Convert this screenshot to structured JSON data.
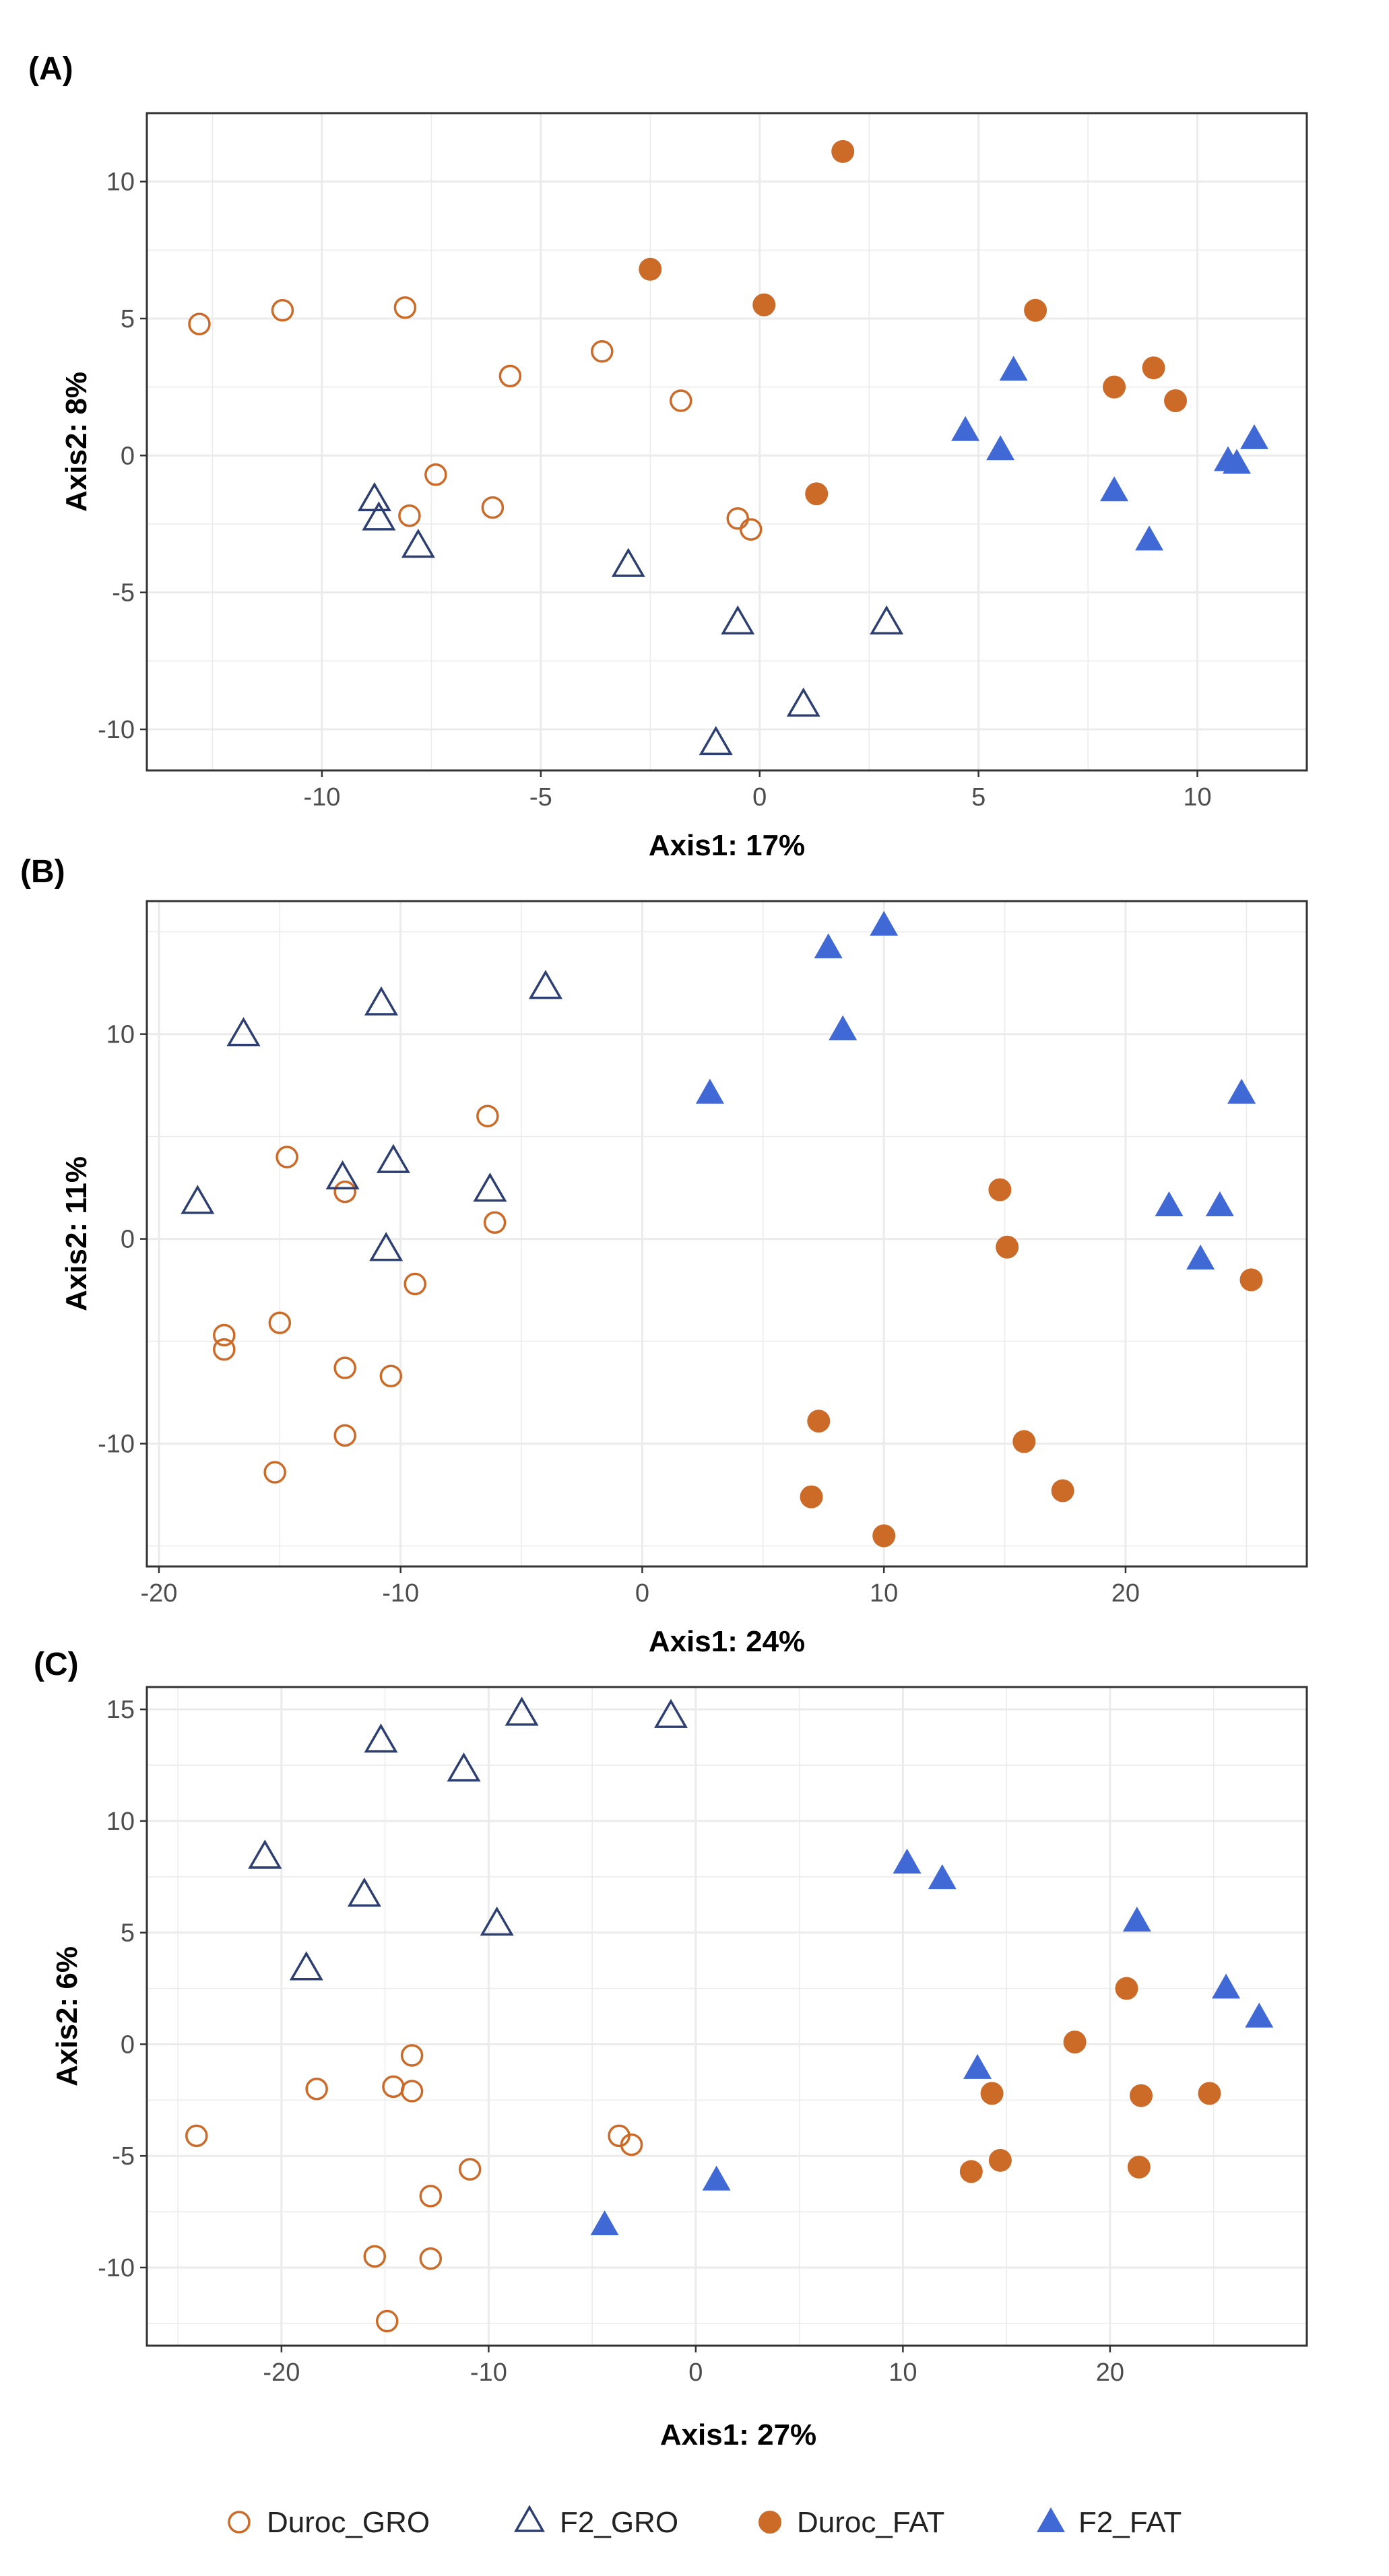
{
  "colors": {
    "duroc": "#cc6a28",
    "f2": "#4169d6",
    "f2_open": "#2c3f70",
    "grid": "#ebebeb",
    "panel_border": "#333333",
    "tick_text": "#4d4d4d",
    "axis_text": "#000000"
  },
  "legend": {
    "entries": [
      {
        "label": "Duroc_GRO",
        "shape": "circle",
        "filled": false,
        "color": "#cc6a28"
      },
      {
        "label": "F2_GRO",
        "shape": "triangle",
        "filled": false,
        "color": "#2c3f70"
      },
      {
        "label": "Duroc_FAT",
        "shape": "circle",
        "filled": true,
        "color": "#cc6a28"
      },
      {
        "label": "F2_FAT",
        "shape": "triangle",
        "filled": true,
        "color": "#4169d6"
      }
    ]
  },
  "chart_data": [
    {
      "panel_label": "(A)",
      "type": "scatter",
      "xlabel": "Axis1: 17%",
      "ylabel": "Axis2: 8%",
      "xlim": [
        -14,
        12.5
      ],
      "ylim": [
        -11.5,
        12.5
      ],
      "xticks": [
        -10,
        -5,
        0,
        5,
        10
      ],
      "yticks": [
        -10,
        -5,
        0,
        5,
        10
      ],
      "xtick_labels": [
        "-10",
        "-5",
        "0",
        "5",
        "10"
      ],
      "ytick_labels": [
        "-10",
        "-5",
        "0",
        "5",
        "10"
      ],
      "grid": true,
      "series": [
        {
          "name": "Duroc_GRO",
          "points": [
            [
              -12.8,
              4.8
            ],
            [
              -10.9,
              5.3
            ],
            [
              -8.1,
              5.4
            ],
            [
              -5.7,
              2.9
            ],
            [
              -3.6,
              3.8
            ],
            [
              -1.8,
              2.0
            ],
            [
              -7.4,
              -0.7
            ],
            [
              -8.0,
              -2.2
            ],
            [
              -6.1,
              -1.9
            ],
            [
              -0.5,
              -2.3
            ],
            [
              -0.2,
              -2.7
            ]
          ]
        },
        {
          "name": "F2_GRO",
          "points": [
            [
              -8.8,
              -1.6
            ],
            [
              -8.7,
              -2.3
            ],
            [
              -7.8,
              -3.3
            ],
            [
              -3.0,
              -4.0
            ],
            [
              -0.5,
              -6.1
            ],
            [
              2.9,
              -6.1
            ],
            [
              1.0,
              -9.1
            ],
            [
              -1.0,
              -10.5
            ]
          ]
        },
        {
          "name": "Duroc_FAT",
          "points": [
            [
              1.9,
              11.1
            ],
            [
              -2.5,
              6.8
            ],
            [
              0.1,
              5.5
            ],
            [
              6.3,
              5.3
            ],
            [
              9.0,
              3.2
            ],
            [
              8.1,
              2.5
            ],
            [
              9.5,
              2.0
            ],
            [
              1.3,
              -1.4
            ]
          ]
        },
        {
          "name": "F2_FAT",
          "points": [
            [
              5.8,
              3.1
            ],
            [
              4.7,
              0.9
            ],
            [
              5.5,
              0.2
            ],
            [
              10.7,
              -0.2
            ],
            [
              10.9,
              -0.3
            ],
            [
              11.3,
              0.6
            ],
            [
              8.1,
              -1.3
            ],
            [
              8.9,
              -3.1
            ]
          ]
        }
      ]
    },
    {
      "panel_label": "(B)",
      "type": "scatter",
      "xlabel": "Axis1: 24%",
      "ylabel": "Axis2: 11%",
      "xlim": [
        -20.5,
        27.5
      ],
      "ylim": [
        -16,
        16.5
      ],
      "xticks": [
        -20,
        -10,
        0,
        10,
        20
      ],
      "yticks": [
        -10,
        0,
        10
      ],
      "xtick_labels": [
        "-20",
        "-10",
        "0",
        "10",
        "20"
      ],
      "ytick_labels": [
        "-10",
        "0",
        "10"
      ],
      "grid": true,
      "series": [
        {
          "name": "Duroc_GRO",
          "points": [
            [
              -6.4,
              6.0
            ],
            [
              -14.7,
              4.0
            ],
            [
              -12.3,
              2.3
            ],
            [
              -6.1,
              0.8
            ],
            [
              -9.4,
              -2.2
            ],
            [
              -17.3,
              -4.7
            ],
            [
              -17.3,
              -5.4
            ],
            [
              -15.0,
              -4.1
            ],
            [
              -12.3,
              -6.3
            ],
            [
              -10.4,
              -6.7
            ],
            [
              -12.3,
              -9.6
            ],
            [
              -15.2,
              -11.4
            ]
          ]
        },
        {
          "name": "F2_GRO",
          "points": [
            [
              -16.5,
              10.0
            ],
            [
              -10.8,
              11.5
            ],
            [
              -4.0,
              12.3
            ],
            [
              -12.4,
              3.0
            ],
            [
              -10.3,
              3.8
            ],
            [
              -6.3,
              2.4
            ],
            [
              -18.4,
              1.8
            ],
            [
              -10.6,
              -0.5
            ]
          ]
        },
        {
          "name": "Duroc_FAT",
          "points": [
            [
              14.8,
              2.4
            ],
            [
              15.1,
              -0.4
            ],
            [
              25.2,
              -2.0
            ],
            [
              7.3,
              -8.9
            ],
            [
              15.8,
              -9.9
            ],
            [
              17.4,
              -12.3
            ],
            [
              7.0,
              -12.6
            ],
            [
              10.0,
              -14.5
            ]
          ]
        },
        {
          "name": "F2_FAT",
          "points": [
            [
              7.7,
              14.2
            ],
            [
              10.0,
              15.3
            ],
            [
              8.3,
              10.2
            ],
            [
              2.8,
              7.1
            ],
            [
              24.8,
              7.1
            ],
            [
              21.8,
              1.6
            ],
            [
              23.9,
              1.6
            ],
            [
              23.1,
              -1.0
            ]
          ]
        }
      ]
    },
    {
      "panel_label": "(C)",
      "type": "scatter",
      "xlabel": "Axis1: 27%",
      "ylabel": "Axis2: 6%",
      "xlim": [
        -26.5,
        29.5
      ],
      "ylim": [
        -13.5,
        16
      ],
      "xticks": [
        -20,
        -10,
        0,
        10,
        20
      ],
      "yticks": [
        -10,
        -5,
        0,
        5,
        10,
        15
      ],
      "xtick_labels": [
        "-20",
        "-10",
        "0",
        "10",
        "20"
      ],
      "ytick_labels": [
        "-10",
        "-5",
        "0",
        "5",
        "10",
        "15"
      ],
      "grid": true,
      "series": [
        {
          "name": "Duroc_GRO",
          "points": [
            [
              -24.1,
              -4.1
            ],
            [
              -18.3,
              -2.0
            ],
            [
              -13.7,
              -0.5
            ],
            [
              -14.6,
              -1.9
            ],
            [
              -13.7,
              -2.1
            ],
            [
              -3.7,
              -4.1
            ],
            [
              -3.1,
              -4.5
            ],
            [
              -10.9,
              -5.6
            ],
            [
              -12.8,
              -6.8
            ],
            [
              -15.5,
              -9.5
            ],
            [
              -12.8,
              -9.6
            ],
            [
              -14.9,
              -12.4
            ]
          ]
        },
        {
          "name": "F2_GRO",
          "points": [
            [
              -8.4,
              14.8
            ],
            [
              -1.2,
              14.7
            ],
            [
              -15.2,
              13.6
            ],
            [
              -11.2,
              12.3
            ],
            [
              -20.8,
              8.4
            ],
            [
              -16.0,
              6.7
            ],
            [
              -9.6,
              5.4
            ],
            [
              -18.8,
              3.4
            ]
          ]
        },
        {
          "name": "Duroc_FAT",
          "points": [
            [
              20.8,
              2.5
            ],
            [
              18.3,
              0.1
            ],
            [
              14.3,
              -2.2
            ],
            [
              21.5,
              -2.3
            ],
            [
              24.8,
              -2.2
            ],
            [
              14.7,
              -5.2
            ],
            [
              13.3,
              -5.7
            ],
            [
              21.4,
              -5.5
            ]
          ]
        },
        {
          "name": "F2_FAT",
          "points": [
            [
              10.2,
              8.1
            ],
            [
              11.9,
              7.4
            ],
            [
              21.3,
              5.5
            ],
            [
              25.6,
              2.5
            ],
            [
              27.2,
              1.2
            ],
            [
              13.6,
              -1.1
            ],
            [
              1.0,
              -6.1
            ],
            [
              -4.4,
              -8.1
            ]
          ]
        }
      ]
    }
  ]
}
